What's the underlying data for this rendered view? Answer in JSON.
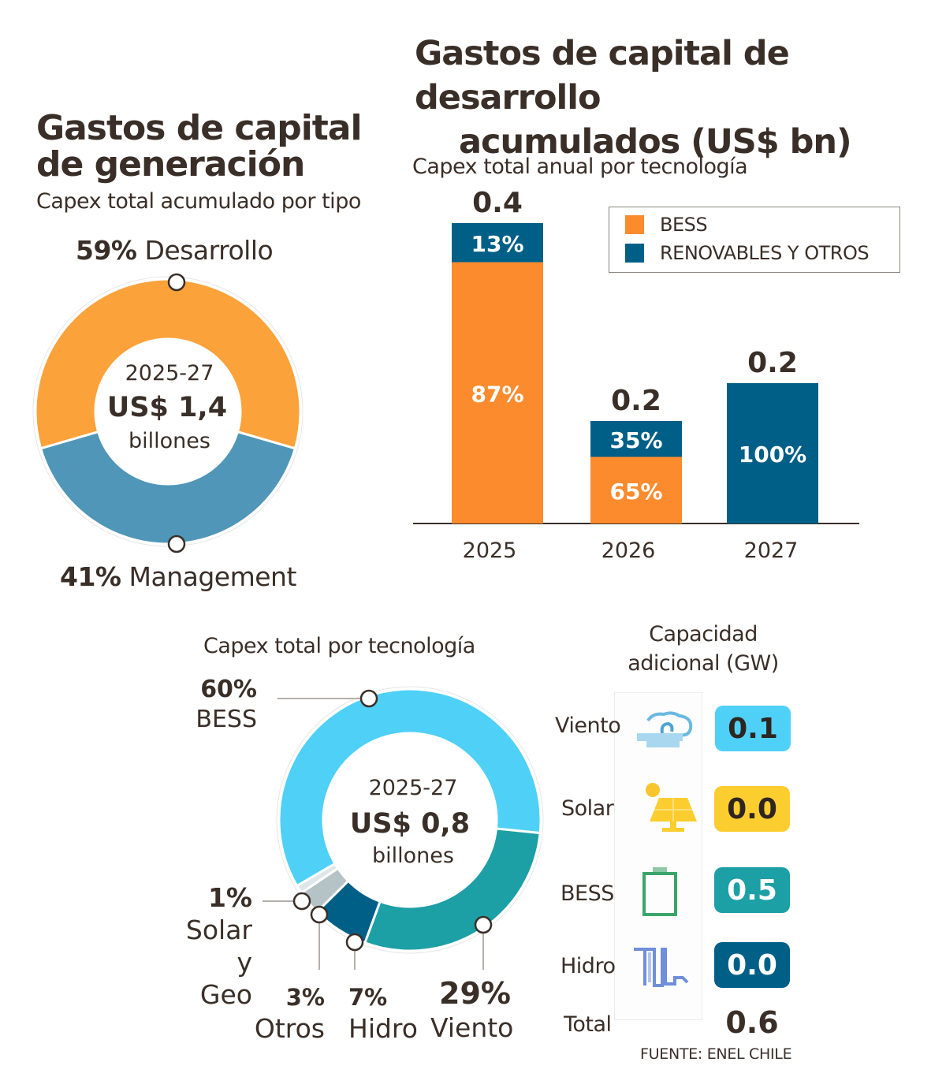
{
  "left_panel": {
    "title_line1": "Gastos de capital",
    "title_line2": "de generación",
    "subtitle": "Capex total acumulado por tipo"
  },
  "right_panel": {
    "title_line1": "Gastos de capital de desarrollo",
    "title_line2": "acumulados (US$ bn)",
    "subtitle": "Capex total anual por tecnología"
  },
  "bottom_panel": {
    "subtitle": "Capex total por tecnología",
    "capacity_title_line1": "Capacidad",
    "capacity_title_line2": "adicional (GW)",
    "capacity_rows": [
      {
        "label": "Viento",
        "value": "0.1",
        "icon": "wind-cloud-icon",
        "color": "#4fd0f7",
        "text_color": "#2e2520"
      },
      {
        "label": "Solar",
        "value": "0.0",
        "icon": "solar-panel-icon",
        "color": "#fccd2f",
        "text_color": "#2e2520"
      },
      {
        "label": "BESS",
        "value": "0.5",
        "icon": "battery-icon",
        "color": "#1c9fa5",
        "text_color": "#ffffff"
      },
      {
        "label": "Hidro",
        "value": "0.0",
        "icon": "hydro-wave-icon",
        "color": "#005f87",
        "text_color": "#ffffff"
      }
    ],
    "total_label": "Total",
    "total_value": "0.6",
    "source": "FUENTE: ENEL CHILE"
  },
  "chart_data": [
    {
      "type": "pie",
      "donut": true,
      "title": "Gastos de capital de generación",
      "subtitle": "Capex total acumulado por tipo",
      "center_line1": "2025-27",
      "center_line2": "US$ 1,4",
      "center_line3": "billones",
      "slices": [
        {
          "label": "Desarrollo",
          "value": 59,
          "display": "59%",
          "color": "#fca23a"
        },
        {
          "label": "Management",
          "value": 41,
          "display": "41%",
          "color": "#4f96b8"
        }
      ]
    },
    {
      "type": "bar",
      "stacked": true,
      "title": "Gastos de capital de desarrollo acumulados (US$ bn)",
      "subtitle": "Capex total anual por tecnología",
      "categories": [
        "2025",
        "2026",
        "2027"
      ],
      "totals": [
        0.4,
        0.2,
        0.2
      ],
      "total_labels": [
        "0.4",
        "0.2",
        "0.2"
      ],
      "series": [
        {
          "name": "BESS",
          "color": "#fc8b2e",
          "share_pct": [
            87,
            65,
            0
          ],
          "labels": [
            "87%",
            "65%",
            ""
          ]
        },
        {
          "name": "RENOVABLES Y OTROS",
          "color": "#005f87",
          "share_pct": [
            13,
            35,
            100
          ],
          "labels": [
            "13%",
            "35%",
            "100%"
          ]
        }
      ],
      "legend_position": "top-right",
      "ylim": [
        0,
        0.4
      ]
    },
    {
      "type": "pie",
      "donut": true,
      "title": "Capex total por tecnología",
      "center_line1": "2025-27",
      "center_line2": "US$ 0,8",
      "center_line3": "billones",
      "slices": [
        {
          "label": "BESS",
          "value": 60,
          "display": "60%",
          "color": "#4fd0f7"
        },
        {
          "label": "Viento",
          "value": 29,
          "display": "29%",
          "color": "#1c9fa5"
        },
        {
          "label": "Hidro",
          "value": 7,
          "display": "7%",
          "color": "#005f87"
        },
        {
          "label": "Otros",
          "value": 3,
          "display": "3%",
          "color": "#b6c3c6"
        },
        {
          "label": "Solar y Geo",
          "value": 1,
          "display": "1%",
          "color": "#dfe6e8"
        }
      ]
    }
  ]
}
